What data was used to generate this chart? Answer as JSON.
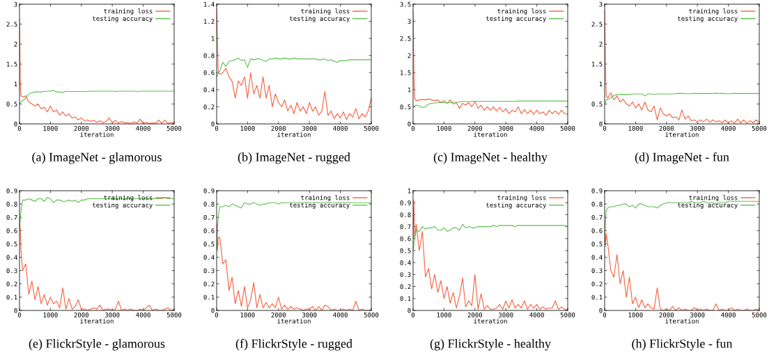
{
  "chart_data": [
    {
      "type": "line",
      "title": "(a) ImageNet - glamorous",
      "xlabel": "iteration",
      "legend": "top right",
      "x": [
        0,
        25,
        50,
        100,
        200,
        300,
        400,
        500,
        600,
        700,
        800,
        900,
        1000,
        1100,
        1200,
        1300,
        1400,
        1500,
        1600,
        1700,
        1800,
        1900,
        2000,
        2100,
        2200,
        2300,
        2400,
        2500,
        2600,
        2700,
        2800,
        2900,
        3000,
        3100,
        3200,
        3300,
        3400,
        3500,
        3600,
        3700,
        3800,
        3900,
        4000,
        4100,
        4200,
        4300,
        4400,
        4500,
        4600,
        4700,
        4800,
        4900,
        5000
      ],
      "xlim": [
        0,
        5000
      ],
      "xticks": [
        0,
        1000,
        2000,
        3000,
        4000,
        5000
      ],
      "ylim": [
        0,
        3
      ],
      "yticks": [
        0,
        0.5,
        1,
        1.5,
        2,
        2.5,
        3
      ],
      "series": [
        {
          "name": "training loss",
          "color": "#f4603e",
          "values": [
            2.65,
            1.0,
            0.7,
            0.68,
            0.7,
            0.55,
            0.5,
            0.45,
            0.5,
            0.38,
            0.42,
            0.3,
            0.45,
            0.3,
            0.35,
            0.22,
            0.3,
            0.2,
            0.25,
            0.15,
            0.18,
            0.1,
            0.15,
            0.08,
            0.1,
            0.06,
            0.09,
            0.04,
            0.08,
            0.03,
            0.06,
            0.15,
            0.03,
            0.09,
            0.02,
            0.06,
            0.02,
            0.04,
            0.01,
            0.05,
            0.02,
            0.12,
            0.01,
            0.04,
            0.01,
            0.03,
            0.01,
            0.1,
            0.01,
            0.1,
            0.01,
            0.04,
            0.02
          ]
        },
        {
          "name": "testing accuracy",
          "color": "#5cbf4f",
          "values": [
            0.5,
            0.52,
            0.55,
            0.58,
            0.65,
            0.75,
            0.78,
            0.8,
            0.8,
            0.8,
            0.81,
            0.82,
            0.82,
            0.84,
            0.8,
            0.8,
            0.79,
            0.82,
            0.81,
            0.81,
            0.81,
            0.81,
            0.81,
            0.81,
            0.81,
            0.82,
            0.82,
            0.82,
            0.82,
            0.82,
            0.82,
            0.82,
            0.82,
            0.81,
            0.82,
            0.82,
            0.82,
            0.82,
            0.82,
            0.82,
            0.81,
            0.82,
            0.82,
            0.82,
            0.82,
            0.82,
            0.82,
            0.82,
            0.82,
            0.82,
            0.82,
            0.82,
            0.82
          ]
        }
      ]
    },
    {
      "type": "line",
      "title": "(b) ImageNet - rugged",
      "xlabel": "iteration",
      "legend": "top right",
      "x": [
        0,
        25,
        50,
        100,
        200,
        300,
        400,
        500,
        600,
        700,
        800,
        900,
        1000,
        1100,
        1200,
        1300,
        1400,
        1500,
        1600,
        1700,
        1800,
        1900,
        2000,
        2100,
        2200,
        2300,
        2400,
        2500,
        2600,
        2700,
        2800,
        2900,
        3000,
        3100,
        3200,
        3300,
        3400,
        3500,
        3600,
        3700,
        3800,
        3900,
        4000,
        4100,
        4200,
        4300,
        4400,
        4500,
        4600,
        4700,
        4800,
        4900,
        5000
      ],
      "xlim": [
        0,
        5000
      ],
      "xticks": [
        0,
        1000,
        2000,
        3000,
        4000,
        5000
      ],
      "ylim": [
        0,
        1.4
      ],
      "yticks": [
        0,
        0.2,
        0.4,
        0.6,
        0.8,
        1,
        1.2,
        1.4
      ],
      "series": [
        {
          "name": "training loss",
          "color": "#f4603e",
          "values": [
            1.35,
            1.0,
            0.6,
            0.58,
            0.6,
            0.65,
            0.55,
            0.5,
            0.3,
            0.5,
            0.45,
            0.55,
            0.3,
            0.6,
            0.35,
            0.45,
            0.3,
            0.55,
            0.3,
            0.45,
            0.2,
            0.35,
            0.25,
            0.2,
            0.28,
            0.15,
            0.22,
            0.12,
            0.25,
            0.15,
            0.2,
            0.12,
            0.25,
            0.15,
            0.2,
            0.1,
            0.15,
            0.38,
            0.1,
            0.15,
            0.06,
            0.12,
            0.07,
            0.14,
            0.05,
            0.12,
            0.08,
            0.18,
            0.06,
            0.12,
            0.08,
            0.15,
            0.3
          ]
        },
        {
          "name": "testing accuracy",
          "color": "#5cbf4f",
          "values": [
            0.55,
            0.57,
            0.6,
            0.62,
            0.72,
            0.67,
            0.73,
            0.74,
            0.75,
            0.77,
            0.74,
            0.75,
            0.66,
            0.76,
            0.75,
            0.76,
            0.76,
            0.74,
            0.73,
            0.76,
            0.76,
            0.77,
            0.76,
            0.76,
            0.77,
            0.76,
            0.76,
            0.77,
            0.76,
            0.76,
            0.76,
            0.76,
            0.76,
            0.76,
            0.76,
            0.75,
            0.75,
            0.76,
            0.74,
            0.75,
            0.73,
            0.72,
            0.74,
            0.74,
            0.74,
            0.75,
            0.75,
            0.75,
            0.75,
            0.75,
            0.75,
            0.75,
            0.75
          ]
        }
      ]
    },
    {
      "type": "line",
      "title": "(c) ImageNet - healthy",
      "xlabel": "iteration",
      "legend": "top right",
      "x": [
        0,
        25,
        50,
        100,
        200,
        300,
        400,
        500,
        600,
        700,
        800,
        900,
        1000,
        1100,
        1200,
        1300,
        1400,
        1500,
        1600,
        1700,
        1800,
        1900,
        2000,
        2100,
        2200,
        2300,
        2400,
        2500,
        2600,
        2700,
        2800,
        2900,
        3000,
        3100,
        3200,
        3300,
        3400,
        3500,
        3600,
        3700,
        3800,
        3900,
        4000,
        4100,
        4200,
        4300,
        4400,
        4500,
        4600,
        4700,
        4800,
        4900,
        5000
      ],
      "xlim": [
        0,
        5000
      ],
      "xticks": [
        0,
        1000,
        2000,
        3000,
        4000,
        5000
      ],
      "ylim": [
        0,
        3.5
      ],
      "yticks": [
        0,
        0.5,
        1,
        1.5,
        2,
        2.5,
        3,
        3.5
      ],
      "series": [
        {
          "name": "training loss",
          "color": "#f4603e",
          "values": [
            3.3,
            1.5,
            0.75,
            0.68,
            0.7,
            0.72,
            0.7,
            0.73,
            0.7,
            0.68,
            0.7,
            0.62,
            0.68,
            0.6,
            0.7,
            0.58,
            0.62,
            0.45,
            0.6,
            0.55,
            0.62,
            0.5,
            0.65,
            0.45,
            0.55,
            0.4,
            0.5,
            0.4,
            0.5,
            0.38,
            0.48,
            0.35,
            0.45,
            0.3,
            0.4,
            0.35,
            0.5,
            0.3,
            0.42,
            0.3,
            0.4,
            0.28,
            0.4,
            0.3,
            0.35,
            0.25,
            0.4,
            0.3,
            0.38,
            0.28,
            0.4,
            0.3,
            0.28
          ]
        },
        {
          "name": "testing accuracy",
          "color": "#5cbf4f",
          "values": [
            0.5,
            0.52,
            0.53,
            0.55,
            0.53,
            0.48,
            0.5,
            0.58,
            0.6,
            0.61,
            0.62,
            0.62,
            0.62,
            0.62,
            0.62,
            0.63,
            0.63,
            0.64,
            0.66,
            0.65,
            0.65,
            0.66,
            0.66,
            0.66,
            0.66,
            0.66,
            0.66,
            0.66,
            0.66,
            0.66,
            0.66,
            0.66,
            0.66,
            0.66,
            0.66,
            0.66,
            0.67,
            0.67,
            0.67,
            0.67,
            0.67,
            0.67,
            0.67,
            0.67,
            0.67,
            0.67,
            0.67,
            0.67,
            0.67,
            0.67,
            0.67,
            0.67,
            0.67
          ]
        }
      ]
    },
    {
      "type": "line",
      "title": "(d) ImageNet - fun",
      "xlabel": "iteration",
      "legend": "top right",
      "x": [
        0,
        25,
        50,
        100,
        200,
        300,
        400,
        500,
        600,
        700,
        800,
        900,
        1000,
        1100,
        1200,
        1300,
        1400,
        1500,
        1600,
        1700,
        1800,
        1900,
        2000,
        2100,
        2200,
        2300,
        2400,
        2500,
        2600,
        2700,
        2800,
        2900,
        3000,
        3100,
        3200,
        3300,
        3400,
        3500,
        3600,
        3700,
        3800,
        3900,
        4000,
        4100,
        4200,
        4300,
        4400,
        4500,
        4600,
        4700,
        4800,
        4900,
        5000
      ],
      "xlim": [
        0,
        5000
      ],
      "xticks": [
        0,
        1000,
        2000,
        3000,
        4000,
        5000
      ],
      "ylim": [
        0,
        3
      ],
      "yticks": [
        0,
        0.5,
        1,
        1.5,
        2,
        2.5,
        3
      ],
      "series": [
        {
          "name": "training loss",
          "color": "#f4603e",
          "values": [
            2.85,
            1.5,
            0.7,
            0.65,
            0.78,
            0.6,
            0.7,
            0.55,
            0.62,
            0.5,
            0.45,
            0.55,
            0.4,
            0.5,
            0.35,
            0.55,
            0.35,
            0.3,
            0.45,
            0.1,
            0.4,
            0.25,
            0.2,
            0.25,
            0.15,
            0.18,
            0.1,
            0.35,
            0.12,
            0.2,
            0.08,
            0.1,
            0.05,
            0.1,
            0.05,
            0.12,
            0.04,
            0.1,
            0.05,
            0.08,
            0.03,
            0.1,
            0.02,
            0.08,
            0.02,
            0.12,
            0.03,
            0.1,
            0.02,
            0.08,
            0.03,
            0.1,
            0.05
          ]
        },
        {
          "name": "testing accuracy",
          "color": "#5cbf4f",
          "values": [
            0.5,
            0.55,
            0.6,
            0.62,
            0.65,
            0.72,
            0.73,
            0.74,
            0.74,
            0.74,
            0.74,
            0.75,
            0.75,
            0.75,
            0.75,
            0.7,
            0.75,
            0.75,
            0.74,
            0.75,
            0.75,
            0.75,
            0.75,
            0.75,
            0.75,
            0.76,
            0.76,
            0.76,
            0.76,
            0.75,
            0.76,
            0.76,
            0.76,
            0.76,
            0.76,
            0.76,
            0.76,
            0.76,
            0.77,
            0.76,
            0.76,
            0.76,
            0.75,
            0.76,
            0.76,
            0.76,
            0.76,
            0.76,
            0.76,
            0.76,
            0.76,
            0.76,
            0.76
          ]
        }
      ]
    },
    {
      "type": "line",
      "title": "(e) FlickrStyle - glamorous",
      "xlabel": "iteration",
      "legend": "top right",
      "x": [
        0,
        25,
        50,
        100,
        200,
        300,
        400,
        500,
        600,
        700,
        800,
        900,
        1000,
        1100,
        1200,
        1300,
        1400,
        1500,
        1600,
        1700,
        1800,
        1900,
        2000,
        2100,
        2200,
        2300,
        2400,
        2500,
        2600,
        2700,
        2800,
        2900,
        3000,
        3100,
        3200,
        3300,
        3400,
        3500,
        3600,
        3700,
        3800,
        3900,
        4000,
        4100,
        4200,
        4300,
        4400,
        4500,
        4600,
        4700,
        4800,
        4900,
        5000
      ],
      "xlim": [
        0,
        5000
      ],
      "xticks": [
        0,
        1000,
        2000,
        3000,
        4000,
        5000
      ],
      "ylim": [
        0,
        0.9
      ],
      "yticks": [
        0,
        0.1,
        0.2,
        0.3,
        0.4,
        0.5,
        0.6,
        0.7,
        0.8,
        0.9
      ],
      "series": [
        {
          "name": "training loss",
          "color": "#f4603e",
          "values": [
            0.7,
            0.6,
            0.45,
            0.3,
            0.35,
            0.12,
            0.22,
            0.08,
            0.18,
            0.05,
            0.12,
            0.04,
            0.1,
            0.05,
            0.07,
            0.02,
            0.17,
            0.01,
            0.09,
            0.01,
            0.03,
            0.08,
            0.01,
            0.01,
            0,
            0.01,
            0.02,
            0.01,
            0.04,
            0,
            0.01,
            0.01,
            0,
            0.01,
            0.07,
            0,
            0.01,
            0,
            0.01,
            0,
            0,
            0.01,
            0,
            0.02,
            0.04,
            0,
            0.01,
            0,
            0,
            0.01,
            0.02,
            0,
            0.01
          ]
        },
        {
          "name": "testing accuracy",
          "color": "#5cbf4f",
          "values": [
            0.6,
            0.7,
            0.75,
            0.83,
            0.83,
            0.84,
            0.83,
            0.82,
            0.84,
            0.84,
            0.82,
            0.85,
            0.84,
            0.81,
            0.83,
            0.83,
            0.82,
            0.82,
            0.83,
            0.82,
            0.83,
            0.81,
            0.83,
            0.83,
            0.84,
            0.84,
            0.84,
            0.84,
            0.84,
            0.84,
            0.84,
            0.84,
            0.84,
            0.84,
            0.84,
            0.84,
            0.84,
            0.84,
            0.84,
            0.84,
            0.84,
            0.84,
            0.84,
            0.84,
            0.84,
            0.84,
            0.84,
            0.84,
            0.84,
            0.85,
            0.84,
            0.84,
            0.84
          ]
        }
      ]
    },
    {
      "type": "line",
      "title": "(f) FlickrStyle - rugged",
      "xlabel": "iteration",
      "legend": "top right",
      "x": [
        0,
        25,
        50,
        100,
        200,
        300,
        400,
        500,
        600,
        700,
        800,
        900,
        1000,
        1100,
        1200,
        1300,
        1400,
        1500,
        1600,
        1700,
        1800,
        1900,
        2000,
        2100,
        2200,
        2300,
        2400,
        2500,
        2600,
        2700,
        2800,
        2900,
        3000,
        3100,
        3200,
        3300,
        3400,
        3500,
        3600,
        3700,
        3800,
        3900,
        4000,
        4100,
        4200,
        4300,
        4400,
        4500,
        4600,
        4700,
        4800,
        4900,
        5000
      ],
      "xlim": [
        0,
        5000
      ],
      "xticks": [
        0,
        1000,
        2000,
        3000,
        4000,
        5000
      ],
      "ylim": [
        0,
        0.9
      ],
      "yticks": [
        0,
        0.1,
        0.2,
        0.3,
        0.4,
        0.5,
        0.6,
        0.7,
        0.8,
        0.9
      ],
      "series": [
        {
          "name": "training loss",
          "color": "#f4603e",
          "values": [
            0.65,
            0.45,
            0.55,
            0.55,
            0.35,
            0.38,
            0.15,
            0.25,
            0.05,
            0.15,
            0.03,
            0.18,
            0.02,
            0.08,
            0.21,
            0.02,
            0.12,
            0.02,
            0.06,
            0.02,
            0.05,
            0.02,
            0.1,
            0.01,
            0.04,
            0.01,
            0.03,
            0.01,
            0.02,
            0.01,
            0,
            0.01,
            0.01,
            0.03,
            0,
            0.03,
            0,
            0.04,
            0.03,
            0,
            0.01,
            0,
            0,
            0.01,
            0,
            0.01,
            0,
            0.07,
            0,
            0.01,
            0,
            0,
            0
          ]
        },
        {
          "name": "testing accuracy",
          "color": "#5cbf4f",
          "values": [
            0.45,
            0.6,
            0.7,
            0.78,
            0.78,
            0.79,
            0.78,
            0.8,
            0.79,
            0.78,
            0.77,
            0.81,
            0.8,
            0.8,
            0.81,
            0.8,
            0.79,
            0.8,
            0.8,
            0.81,
            0.81,
            0.81,
            0.8,
            0.81,
            0.81,
            0.81,
            0.81,
            0.81,
            0.81,
            0.81,
            0.81,
            0.81,
            0.81,
            0.81,
            0.81,
            0.81,
            0.81,
            0.81,
            0.81,
            0.81,
            0.81,
            0.81,
            0.81,
            0.81,
            0.81,
            0.81,
            0.81,
            0.81,
            0.81,
            0.81,
            0.81,
            0.81,
            0.81
          ]
        }
      ]
    },
    {
      "type": "line",
      "title": "(g) FlickrStyle - healthy",
      "xlabel": "iteration",
      "legend": "top right",
      "x": [
        0,
        25,
        50,
        100,
        200,
        300,
        400,
        500,
        600,
        700,
        800,
        900,
        1000,
        1100,
        1200,
        1300,
        1400,
        1500,
        1600,
        1700,
        1800,
        1900,
        2000,
        2100,
        2200,
        2300,
        2400,
        2500,
        2600,
        2700,
        2800,
        2900,
        3000,
        3100,
        3200,
        3300,
        3400,
        3500,
        3600,
        3700,
        3800,
        3900,
        4000,
        4100,
        4200,
        4300,
        4400,
        4500,
        4600,
        4700,
        4800,
        4900,
        5000
      ],
      "xlim": [
        0,
        5000
      ],
      "xticks": [
        0,
        1000,
        2000,
        3000,
        4000,
        5000
      ],
      "ylim": [
        0,
        1
      ],
      "yticks": [
        0,
        0.1,
        0.2,
        0.3,
        0.4,
        0.5,
        0.6,
        0.7,
        0.8,
        0.9,
        1
      ],
      "series": [
        {
          "name": "training loss",
          "color": "#f4603e",
          "values": [
            0.6,
            0.92,
            0.6,
            0.72,
            0.5,
            0.66,
            0.28,
            0.35,
            0.18,
            0.3,
            0.15,
            0.25,
            0.1,
            0.2,
            0.06,
            0.15,
            0.02,
            0.12,
            0.27,
            0.03,
            0.08,
            0.04,
            0.3,
            0.01,
            0.14,
            0.01,
            0.04,
            0.01,
            0.01,
            0.02,
            0.05,
            0.01,
            0.08,
            0.02,
            0.09,
            0.02,
            0.05,
            0.02,
            0.08,
            0.01,
            0.05,
            0.02,
            0.05,
            0.01,
            0.03,
            0.01,
            0.02,
            0.02,
            0.08,
            0.01,
            0.03,
            0.01,
            0.01
          ]
        },
        {
          "name": "testing accuracy",
          "color": "#5cbf4f",
          "values": [
            0.5,
            0.55,
            0.6,
            0.67,
            0.66,
            0.7,
            0.68,
            0.69,
            0.69,
            0.7,
            0.67,
            0.67,
            0.69,
            0.66,
            0.67,
            0.69,
            0.69,
            0.67,
            0.72,
            0.69,
            0.7,
            0.69,
            0.69,
            0.7,
            0.7,
            0.7,
            0.7,
            0.7,
            0.71,
            0.7,
            0.71,
            0.71,
            0.71,
            0.71,
            0.71,
            0.7,
            0.71,
            0.71,
            0.71,
            0.71,
            0.71,
            0.71,
            0.71,
            0.71,
            0.71,
            0.71,
            0.71,
            0.71,
            0.71,
            0.71,
            0.71,
            0.71,
            0.7
          ]
        }
      ]
    },
    {
      "type": "line",
      "title": "(h) FlickrStyle - fun",
      "xlabel": "iteration",
      "legend": "top right",
      "x": [
        0,
        25,
        50,
        100,
        200,
        300,
        400,
        500,
        600,
        700,
        800,
        900,
        1000,
        1100,
        1200,
        1300,
        1400,
        1500,
        1600,
        1700,
        1800,
        1900,
        2000,
        2100,
        2200,
        2300,
        2400,
        2500,
        2600,
        2700,
        2800,
        2900,
        3000,
        3100,
        3200,
        3300,
        3400,
        3500,
        3600,
        3700,
        3800,
        3900,
        4000,
        4100,
        4200,
        4300,
        4400,
        4500,
        4600,
        4700,
        4800,
        4900,
        5000
      ],
      "xlim": [
        0,
        5000
      ],
      "xticks": [
        0,
        1000,
        2000,
        3000,
        4000,
        5000
      ],
      "ylim": [
        0,
        0.9
      ],
      "yticks": [
        0,
        0.1,
        0.2,
        0.3,
        0.4,
        0.5,
        0.6,
        0.7,
        0.8,
        0.9
      ],
      "series": [
        {
          "name": "training loss",
          "color": "#f4603e",
          "values": [
            0.62,
            0.48,
            0.58,
            0.5,
            0.3,
            0.25,
            0.42,
            0.2,
            0.3,
            0.1,
            0.25,
            0.05,
            0.1,
            0.02,
            0.08,
            0.02,
            0.05,
            0.02,
            0.01,
            0.17,
            0.01,
            0,
            0.01,
            0,
            0.03,
            0,
            0.02,
            0,
            0.01,
            0,
            0,
            0.02,
            0,
            0.01,
            0,
            0.01,
            0,
            0,
            0.05,
            0,
            0.01,
            0,
            0,
            0.02,
            0,
            0.01,
            0,
            0,
            0.01,
            0,
            0,
            0.01,
            0
          ]
        },
        {
          "name": "testing accuracy",
          "color": "#5cbf4f",
          "values": [
            0.55,
            0.65,
            0.75,
            0.77,
            0.78,
            0.78,
            0.79,
            0.79,
            0.8,
            0.8,
            0.78,
            0.79,
            0.77,
            0.8,
            0.8,
            0.79,
            0.78,
            0.78,
            0.78,
            0.77,
            0.79,
            0.8,
            0.81,
            0.81,
            0.81,
            0.81,
            0.81,
            0.81,
            0.81,
            0.81,
            0.82,
            0.81,
            0.81,
            0.81,
            0.82,
            0.81,
            0.81,
            0.81,
            0.8,
            0.81,
            0.81,
            0.81,
            0.82,
            0.82,
            0.82,
            0.82,
            0.82,
            0.82,
            0.82,
            0.82,
            0.82,
            0.82,
            0.82
          ]
        }
      ]
    }
  ]
}
